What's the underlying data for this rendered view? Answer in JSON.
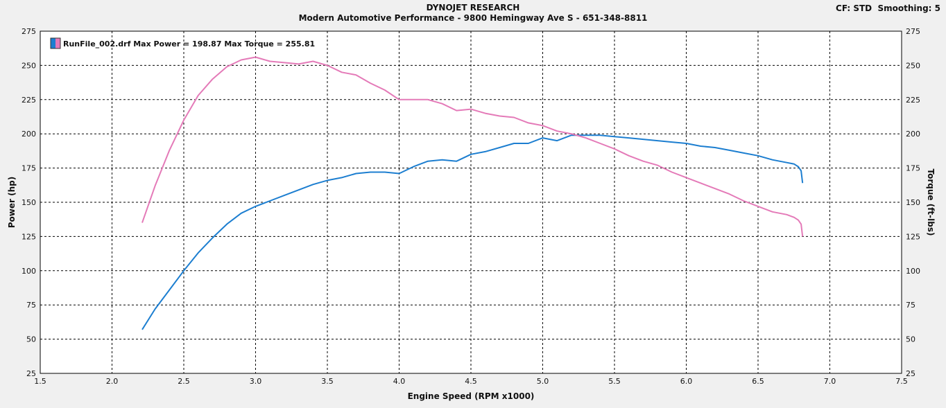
{
  "header": {
    "title": "DYNOJET RESEARCH",
    "subtitle": "Modern Automotive Performance - 9800 Hemingway Ave S - 651-348-8811",
    "settings": "CF: STD  Smoothing: 5"
  },
  "colors": {
    "power": "#1c7ed0",
    "torque": "#e47ab8",
    "grid": "#000000",
    "plot_bg": "#ffffff"
  },
  "chart_data": {
    "type": "line",
    "xlabel": "Engine Speed (RPM x1000)",
    "ylabel": "Power (hp)",
    "y2label": "Torque (ft-lbs)",
    "xlim": [
      1.5,
      7.5
    ],
    "ylim": [
      25,
      275
    ],
    "y2lim": [
      25,
      275
    ],
    "x_ticks": [
      "1.5",
      "2.0",
      "2.5",
      "3.0",
      "3.5",
      "4.0",
      "4.5",
      "5.0",
      "5.5",
      "6.0",
      "6.5",
      "7.0",
      "7.5"
    ],
    "y_ticks": [
      "275",
      "250",
      "225",
      "200",
      "175",
      "150",
      "125",
      "100",
      "75",
      "50",
      "25"
    ],
    "grid": true,
    "legend": {
      "placement": "top-left",
      "text": "RunFile_002.drf Max Power = 198.87 Max Torque = 255.81"
    },
    "series": [
      {
        "name": "Power",
        "axis": "left",
        "x": [
          2.21,
          2.3,
          2.4,
          2.5,
          2.6,
          2.7,
          2.8,
          2.9,
          3.0,
          3.1,
          3.2,
          3.3,
          3.4,
          3.5,
          3.6,
          3.7,
          3.8,
          3.9,
          4.0,
          4.1,
          4.2,
          4.3,
          4.4,
          4.5,
          4.6,
          4.7,
          4.8,
          4.9,
          5.0,
          5.1,
          5.2,
          5.3,
          5.4,
          5.5,
          5.6,
          5.7,
          5.8,
          5.9,
          6.0,
          6.1,
          6.2,
          6.3,
          6.4,
          6.5,
          6.6,
          6.7,
          6.75,
          6.78,
          6.8,
          6.81
        ],
        "values": [
          57,
          72,
          86,
          100,
          113,
          124,
          134,
          142,
          147,
          151,
          155,
          159,
          163,
          166,
          168,
          171,
          172,
          172,
          171,
          176,
          180,
          181,
          180,
          185,
          187,
          190,
          193,
          193,
          197,
          195,
          199,
          199,
          199,
          198,
          197,
          196,
          195,
          194,
          193,
          191,
          190,
          188,
          186,
          184,
          181,
          179,
          178,
          176,
          173,
          164
        ]
      },
      {
        "name": "Torque",
        "axis": "right",
        "x": [
          2.21,
          2.3,
          2.4,
          2.5,
          2.6,
          2.7,
          2.8,
          2.9,
          3.0,
          3.1,
          3.2,
          3.3,
          3.4,
          3.5,
          3.6,
          3.7,
          3.8,
          3.9,
          4.0,
          4.1,
          4.2,
          4.3,
          4.4,
          4.5,
          4.6,
          4.7,
          4.8,
          4.9,
          5.0,
          5.1,
          5.2,
          5.3,
          5.4,
          5.5,
          5.6,
          5.7,
          5.8,
          5.9,
          6.0,
          6.1,
          6.2,
          6.3,
          6.4,
          6.5,
          6.6,
          6.7,
          6.75,
          6.78,
          6.8,
          6.81
        ],
        "values": [
          135,
          162,
          188,
          210,
          228,
          240,
          249,
          254,
          256,
          253,
          252,
          251,
          253,
          250,
          245,
          243,
          237,
          232,
          225,
          225,
          225,
          222,
          217,
          218,
          215,
          213,
          212,
          208,
          206,
          202,
          200,
          197,
          193,
          189,
          184,
          180,
          177,
          172,
          168,
          164,
          160,
          156,
          151,
          147,
          143,
          141,
          139,
          137,
          134,
          125
        ]
      }
    ]
  }
}
